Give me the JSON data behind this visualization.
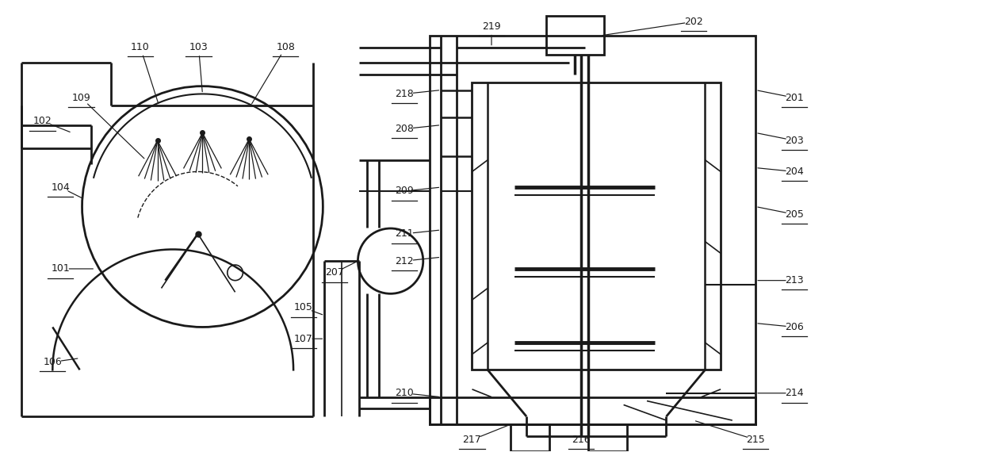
{
  "bg_color": "#ffffff",
  "line_color": "#1a1a1a",
  "fig_width": 12.4,
  "fig_height": 5.75
}
